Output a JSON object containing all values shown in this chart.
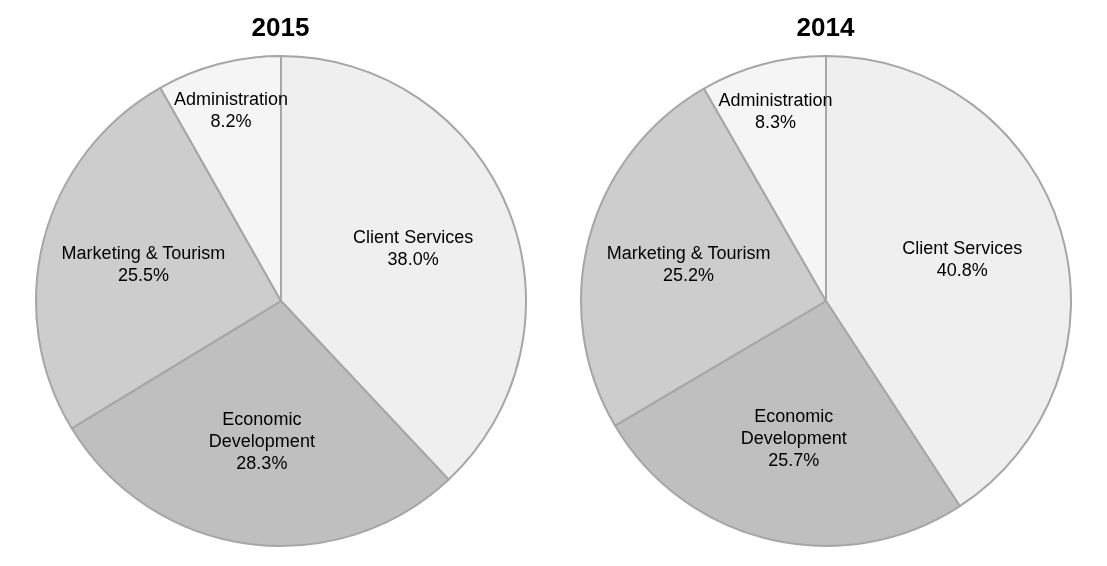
{
  "chart_data": [
    {
      "type": "pie",
      "title": "2015",
      "categories": [
        "Client Services",
        "Economic Development",
        "Marketing & Tourism",
        "Administration"
      ],
      "values": [
        38.0,
        28.3,
        25.5,
        8.2
      ],
      "value_labels": [
        "38.0%",
        "28.3%",
        "25.5%",
        "8.2%"
      ],
      "colors": [
        "#efefef",
        "#bfbfbf",
        "#cdcdcd",
        "#f5f5f5"
      ]
    },
    {
      "type": "pie",
      "title": "2014",
      "categories": [
        "Client Services",
        "Economic Development",
        "Marketing & Tourism",
        "Administration"
      ],
      "values": [
        40.8,
        25.7,
        25.2,
        8.3
      ],
      "value_labels": [
        "40.8%",
        "25.7%",
        "25.2%",
        "8.3%"
      ],
      "colors": [
        "#efefef",
        "#bfbfbf",
        "#cdcdcd",
        "#f5f5f5"
      ]
    }
  ]
}
